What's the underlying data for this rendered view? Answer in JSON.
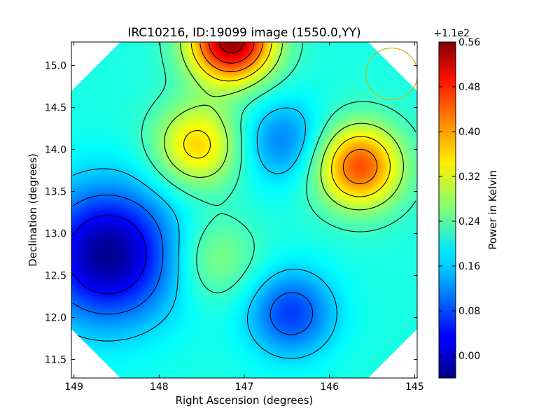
{
  "chart_data": {
    "type": "heatmap",
    "title": "IRC10216, ID:19099 image (1550.0,YY)",
    "xlabel": "Right Ascension (degrees)",
    "ylabel": "Declination (degrees)",
    "xlim": [
      149.03,
      144.97
    ],
    "ylim": [
      11.28,
      15.28
    ],
    "xticks": [
      149,
      148,
      147,
      146,
      145
    ],
    "xtick_labels": [
      "149",
      "148",
      "147",
      "146",
      "145"
    ],
    "yticks": [
      11.5,
      12.0,
      12.5,
      13.0,
      13.5,
      14.0,
      14.5,
      15.0
    ],
    "ytick_labels": [
      "11.5",
      "12.0",
      "12.5",
      "13.0",
      "13.5",
      "14.0",
      "14.5",
      "15.0"
    ],
    "colorbar": {
      "label": "Power in Kelvin",
      "offset_label": "+1.1e2",
      "range": [
        -0.04,
        0.56
      ],
      "ticks": [
        0.0,
        0.08,
        0.16,
        0.24,
        0.32,
        0.4,
        0.48,
        0.56
      ],
      "tick_labels": [
        "0.00",
        "0.08",
        "0.16",
        "0.24",
        "0.32",
        "0.40",
        "0.48",
        "0.56"
      ],
      "colormap": "jet"
    },
    "features": [
      {
        "kind": "max",
        "ra": 147.15,
        "dec": 15.3,
        "value": 0.55
      },
      {
        "kind": "max",
        "ra": 145.65,
        "dec": 13.8,
        "value": 0.44
      },
      {
        "kind": "max",
        "ra": 147.55,
        "dec": 14.05,
        "value": 0.36
      },
      {
        "kind": "max",
        "ra": 147.35,
        "dec": 12.7,
        "value": 0.27
      },
      {
        "kind": "min",
        "ra": 148.6,
        "dec": 12.75,
        "value": -0.03
      },
      {
        "kind": "min",
        "ra": 146.55,
        "dec": 14.1,
        "value": 0.11
      },
      {
        "kind": "min",
        "ra": 146.45,
        "dec": 12.05,
        "value": 0.07
      }
    ],
    "beam_circle": {
      "ra": 145.27,
      "dec": 14.9,
      "color": "#bcbc18"
    },
    "grid": false,
    "legend": "none"
  }
}
